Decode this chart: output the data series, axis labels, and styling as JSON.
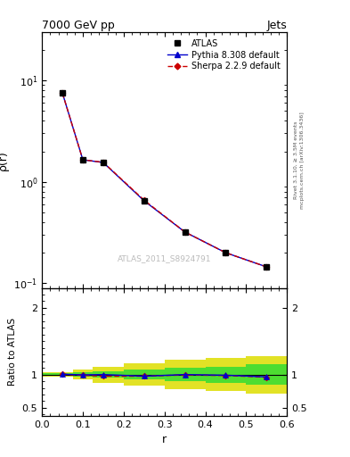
{
  "title_left": "7000 GeV pp",
  "title_right": "Jets",
  "ylabel_main": "ρ(r)",
  "ylabel_ratio": "Ratio to ATLAS",
  "xlabel": "r",
  "watermark": "ATLAS_2011_S8924791",
  "right_label_top": "Rivet 3.1.10, ≥ 3.5M events",
  "right_label_bot": "mcplots.cern.ch [arXiv:1306.3436]",
  "x_data": [
    0.05,
    0.1,
    0.15,
    0.25,
    0.35,
    0.45,
    0.55
  ],
  "y_atlas": [
    7.5,
    1.65,
    1.55,
    0.65,
    0.32,
    0.2,
    0.145
  ],
  "y_pythia": [
    7.5,
    1.65,
    1.55,
    0.65,
    0.32,
    0.2,
    0.145
  ],
  "y_sherpa": [
    7.5,
    1.65,
    1.56,
    0.66,
    0.32,
    0.2,
    0.145
  ],
  "ratio_pythia": [
    1.005,
    0.995,
    1.0,
    0.975,
    1.0,
    0.99,
    0.965
  ],
  "ratio_sherpa": [
    1.005,
    0.99,
    0.975,
    0.975,
    0.995,
    0.985,
    0.96
  ],
  "x_band_edges": [
    0.0,
    0.075,
    0.125,
    0.2,
    0.3,
    0.4,
    0.5,
    0.6
  ],
  "band_green_upper": [
    1.02,
    1.03,
    1.05,
    1.07,
    1.1,
    1.12,
    1.15
  ],
  "band_green_lower": [
    0.98,
    0.97,
    0.95,
    0.93,
    0.9,
    0.88,
    0.85
  ],
  "band_yellow_upper": [
    1.03,
    1.07,
    1.12,
    1.17,
    1.22,
    1.25,
    1.28
  ],
  "band_yellow_lower": [
    0.97,
    0.93,
    0.88,
    0.83,
    0.78,
    0.75,
    0.72
  ],
  "color_atlas": "#000000",
  "color_pythia": "#0000cc",
  "color_sherpa": "#cc0000",
  "color_green": "#33dd33",
  "color_yellow": "#dddd00",
  "ylim_main": [
    0.09,
    30
  ],
  "ylim_ratio": [
    0.38,
    2.3
  ],
  "xlim": [
    0.0,
    0.6
  ],
  "legend_labels": [
    "ATLAS",
    "Pythia 8.308 default",
    "Sherpa 2.2.9 default"
  ]
}
